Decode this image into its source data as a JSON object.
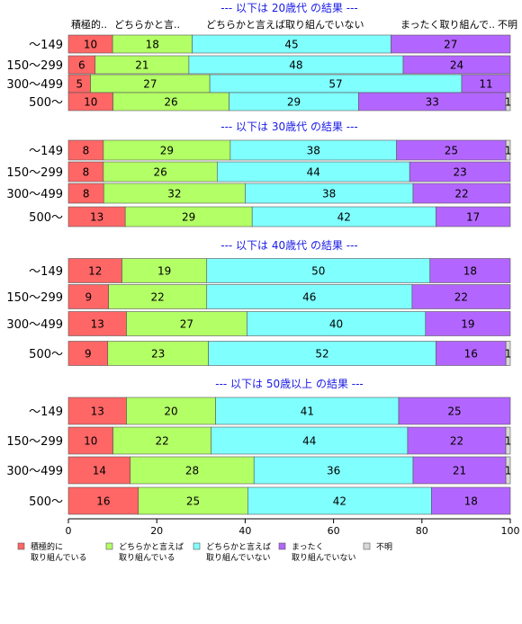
{
  "chart_data": {
    "type": "bar",
    "orientation": "horizontal",
    "stacked": true,
    "percent": true,
    "xlim": [
      0,
      100
    ],
    "x_ticks": [
      "0",
      "20",
      "40",
      "60",
      "80",
      "100"
    ],
    "grid": false,
    "legend_position": "bottom",
    "column_header_labels": [
      "積極的..",
      "どちらかと言..",
      "どちらかと言えば取り組んでいない",
      "まったく取り組んで..",
      "不明"
    ],
    "series": [
      {
        "name": "積極的に\n取り組んでいる",
        "color": "#ff6666"
      },
      {
        "name": "どちらかと言えば\n取り組んでいる",
        "color": "#b3ff66"
      },
      {
        "name": "どちらかと言えば\n取り組んでいない",
        "color": "#80ffff"
      },
      {
        "name": "まったく\n取り組んでいない",
        "color": "#b366ff"
      },
      {
        "name": "不明",
        "color": "#d9d9d9"
      }
    ],
    "panels": [
      {
        "title": "--- 以下は 20歳代 の結果 ---",
        "categories": [
          "〜149",
          "150〜299",
          "300〜499",
          "500〜"
        ],
        "values": [
          [
            10,
            18,
            45,
            27,
            0
          ],
          [
            6,
            21,
            48,
            24,
            0
          ],
          [
            5,
            27,
            57,
            11,
            0
          ],
          [
            10,
            26,
            29,
            33,
            1
          ]
        ],
        "labels": [
          [
            "10",
            "18",
            "45",
            "27",
            ""
          ],
          [
            "6",
            "21",
            "48",
            "24",
            ""
          ],
          [
            "5",
            "27",
            "57",
            "11",
            ""
          ],
          [
            "10",
            "26",
            "29",
            "33",
            "1"
          ]
        ]
      },
      {
        "title": "--- 以下は 30歳代 の結果 ---",
        "categories": [
          "〜149",
          "150〜299",
          "300〜499",
          "500〜"
        ],
        "values": [
          [
            8,
            29,
            38,
            25,
            1
          ],
          [
            8,
            26,
            44,
            23,
            0
          ],
          [
            8,
            32,
            38,
            22,
            0
          ],
          [
            13,
            29,
            42,
            17,
            0
          ]
        ],
        "labels": [
          [
            "8",
            "29",
            "38",
            "25",
            "1"
          ],
          [
            "8",
            "26",
            "44",
            "23",
            ""
          ],
          [
            "8",
            "32",
            "38",
            "22",
            ""
          ],
          [
            "13",
            "29",
            "42",
            "17",
            ""
          ]
        ]
      },
      {
        "title": "--- 以下は 40歳代 の結果 ---",
        "categories": [
          "〜149",
          "150〜299",
          "300〜499",
          "500〜"
        ],
        "values": [
          [
            12,
            19,
            50,
            18,
            0
          ],
          [
            9,
            22,
            46,
            22,
            0
          ],
          [
            13,
            27,
            40,
            19,
            0
          ],
          [
            9,
            23,
            52,
            16,
            1
          ]
        ],
        "labels": [
          [
            "12",
            "19",
            "50",
            "18",
            ""
          ],
          [
            "9",
            "22",
            "46",
            "22",
            ""
          ],
          [
            "13",
            "27",
            "40",
            "19",
            ""
          ],
          [
            "9",
            "23",
            "52",
            "16",
            "1"
          ]
        ]
      },
      {
        "title": "--- 以下は 50歳以上 の結果 ---",
        "categories": [
          "〜149",
          "150〜299",
          "300〜499",
          "500〜"
        ],
        "values": [
          [
            13,
            20,
            41,
            25,
            0
          ],
          [
            10,
            22,
            44,
            22,
            1
          ],
          [
            14,
            28,
            36,
            21,
            1
          ],
          [
            16,
            25,
            42,
            18,
            0
          ]
        ],
        "labels": [
          [
            "13",
            "20",
            "41",
            "25",
            ""
          ],
          [
            "10",
            "22",
            "44",
            "22",
            "1"
          ],
          [
            "14",
            "28",
            "36",
            "21",
            "1"
          ],
          [
            "16",
            "25",
            "42",
            "18",
            ""
          ]
        ]
      }
    ]
  }
}
